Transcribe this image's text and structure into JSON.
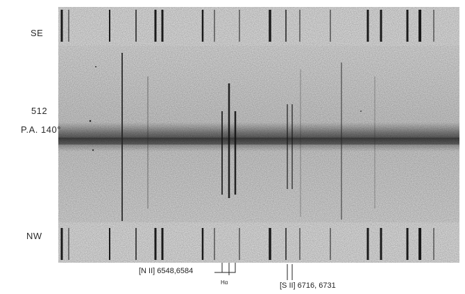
{
  "labels": {
    "top_side": "SE",
    "bottom_side": "NW",
    "object_id": "512",
    "position_angle": "P.A. 140°"
  },
  "annotations": {
    "nii": "[N II] 6548,6584",
    "halpha": "Hα",
    "sii": "[S II] 6716, 6731"
  },
  "colors": {
    "background": "#ffffff",
    "plate": "#dcdcdc",
    "line": "#1a1a1a"
  }
}
